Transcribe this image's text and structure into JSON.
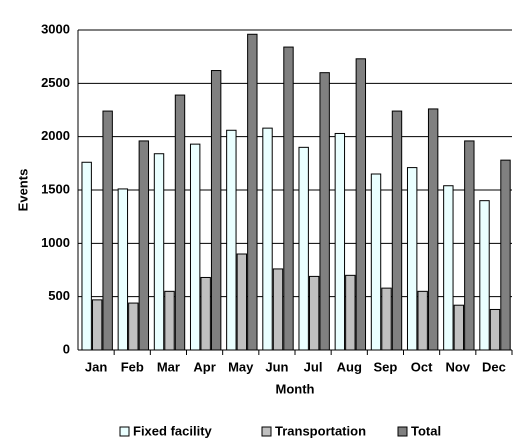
{
  "chart_data": {
    "type": "bar",
    "x_label": "Month",
    "y_label": "Events",
    "categories": [
      "Jan",
      "Feb",
      "Mar",
      "Apr",
      "May",
      "Jun",
      "Jul",
      "Aug",
      "Sep",
      "Oct",
      "Nov",
      "Dec"
    ],
    "series": [
      {
        "name": "Fixed facility",
        "color": "#eaffff",
        "values": [
          1760,
          1510,
          1840,
          1930,
          2060,
          2080,
          1900,
          2030,
          1650,
          1710,
          1540,
          1400
        ]
      },
      {
        "name": "Transportation",
        "color": "#c0c0c0",
        "values": [
          470,
          440,
          550,
          680,
          900,
          760,
          690,
          700,
          580,
          550,
          420,
          380
        ]
      },
      {
        "name": "Total",
        "color": "#808080",
        "values": [
          2240,
          1960,
          2390,
          2620,
          2960,
          2840,
          2600,
          2730,
          2240,
          2260,
          1960,
          1780
        ]
      }
    ],
    "ylim": [
      0,
      3000
    ],
    "yticks": [
      0,
      500,
      1000,
      1500,
      2000,
      2500,
      3000
    ],
    "grid": true
  }
}
